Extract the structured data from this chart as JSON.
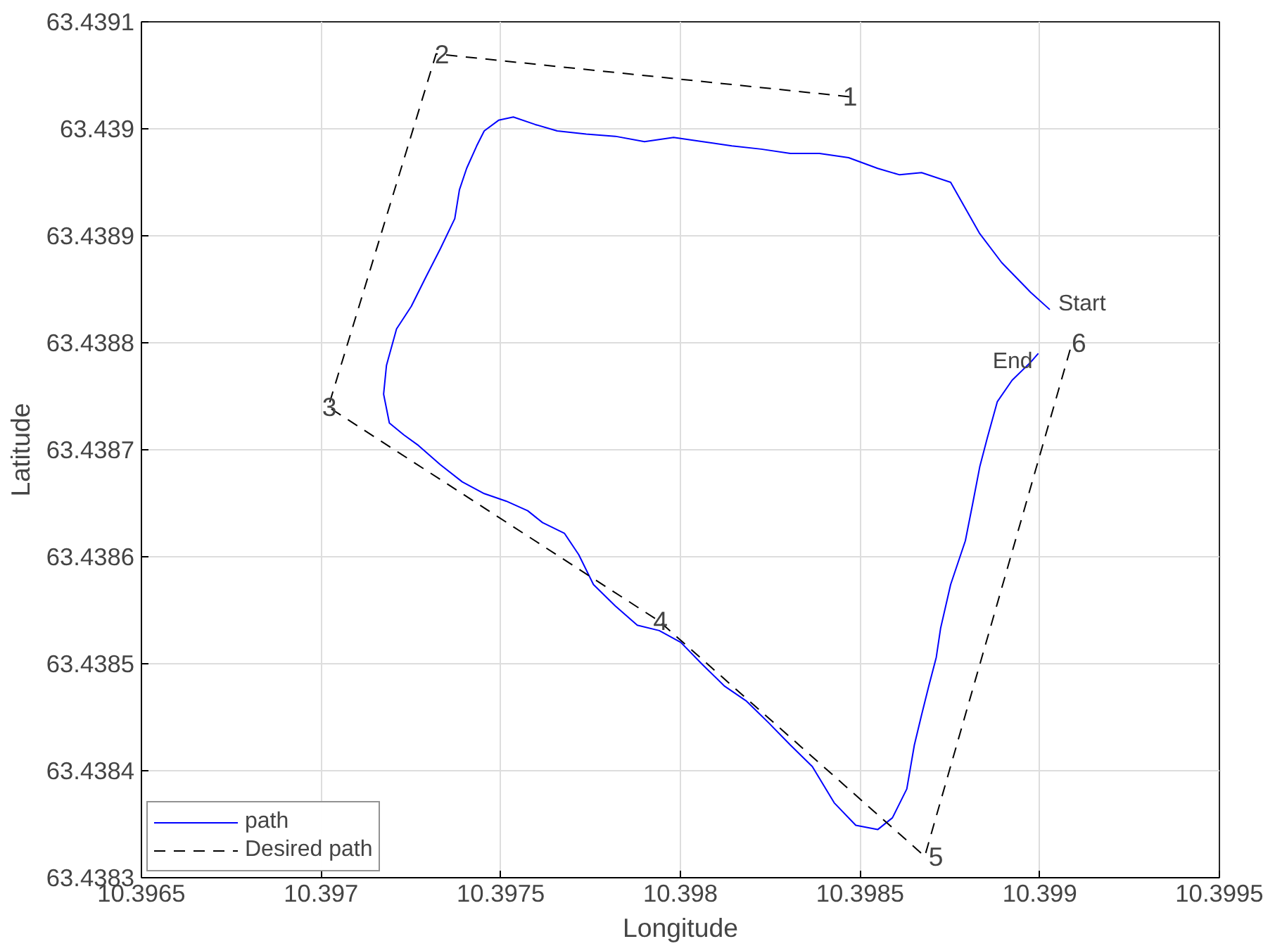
{
  "chart_data": {
    "type": "line",
    "xlabel": "Longitude",
    "ylabel": "Latitude",
    "xlim": [
      10.3965,
      10.3995
    ],
    "ylim": [
      63.4383,
      63.4391
    ],
    "xticks": [
      10.3965,
      10.397,
      10.3975,
      10.398,
      10.3985,
      10.399,
      10.3995
    ],
    "yticks": [
      63.4383,
      63.4384,
      63.4385,
      63.4386,
      63.4387,
      63.4388,
      63.4389,
      63.439,
      63.4391
    ],
    "grid": true,
    "legend": "bottom left",
    "series": [
      {
        "name": "path",
        "color": "#0000ff",
        "line_style": "solid",
        "x": [
          10.399028,
          10.398975,
          10.398894,
          10.398833,
          10.398752,
          10.398671,
          10.39861,
          10.398549,
          10.398468,
          10.398387,
          10.398306,
          10.398225,
          10.398143,
          10.398062,
          10.397981,
          10.3979,
          10.397819,
          10.397738,
          10.397657,
          10.397596,
          10.397535,
          10.397494,
          10.397454,
          10.397433,
          10.397405,
          10.397385,
          10.397372,
          10.397332,
          10.397291,
          10.397251,
          10.39721,
          10.397182,
          10.397174,
          10.39719,
          10.39723,
          10.397271,
          10.397332,
          10.397393,
          10.397454,
          10.397515,
          10.397575,
          10.397616,
          10.397677,
          10.397717,
          10.397758,
          10.397819,
          10.39788,
          10.397941,
          10.398001,
          10.398062,
          10.398123,
          10.398184,
          10.398245,
          10.398306,
          10.398367,
          10.398428,
          10.398488,
          10.398549,
          10.39859,
          10.39863,
          10.398651,
          10.398671,
          10.398691,
          10.398712,
          10.398724,
          10.398752,
          10.398793,
          10.398813,
          10.398833,
          10.398854,
          10.398882,
          10.398923,
          10.398975,
          10.398996
        ],
        "values": [
          63.438831,
          63.438847,
          63.438875,
          63.438902,
          63.43895,
          63.438959,
          63.438957,
          63.438963,
          63.438973,
          63.438977,
          63.438977,
          63.438981,
          63.438984,
          63.438988,
          63.438992,
          63.438988,
          63.438993,
          63.438995,
          63.438998,
          63.439004,
          63.439011,
          63.439008,
          63.438998,
          63.438984,
          63.438963,
          63.438943,
          63.438916,
          63.438888,
          63.438861,
          63.438834,
          63.438813,
          63.438779,
          63.438752,
          63.438725,
          63.438714,
          63.438704,
          63.438686,
          63.43867,
          63.438659,
          63.438652,
          63.438643,
          63.438632,
          63.438622,
          63.438602,
          63.438574,
          63.438554,
          63.438536,
          63.438531,
          63.43852,
          63.438499,
          63.438479,
          63.438465,
          63.438445,
          63.438424,
          63.438404,
          63.43837,
          63.438349,
          63.438345,
          63.438356,
          63.438383,
          63.438424,
          63.438452,
          63.438479,
          63.438506,
          63.438533,
          63.438574,
          63.438615,
          63.438649,
          63.438684,
          63.438711,
          63.438745,
          63.438765,
          63.438782,
          63.43879
        ]
      },
      {
        "name": "Desired path",
        "color": "#000000",
        "line_style": "dashed",
        "x": [
          10.39847,
          10.39732,
          10.39702,
          10.39794,
          10.39868,
          10.39909
        ],
        "values": [
          63.43903,
          63.43907,
          63.43874,
          63.43854,
          63.43832,
          63.4388
        ]
      }
    ],
    "annotations": [
      {
        "text": "1",
        "x": 10.398452,
        "y": 63.43903
      },
      {
        "text": "2",
        "x": 10.397316,
        "y": 63.43907
      },
      {
        "text": "3",
        "x": 10.397003,
        "y": 63.43874
      },
      {
        "text": "4",
        "x": 10.397924,
        "y": 63.43854
      },
      {
        "text": "5",
        "x": 10.398691,
        "y": 63.43832
      },
      {
        "text": "6",
        "x": 10.399089,
        "y": 63.4388
      },
      {
        "text": "Start",
        "x": 10.399028,
        "y": 63.438831
      },
      {
        "text": "End",
        "x": 10.398996,
        "y": 63.43879
      }
    ]
  }
}
